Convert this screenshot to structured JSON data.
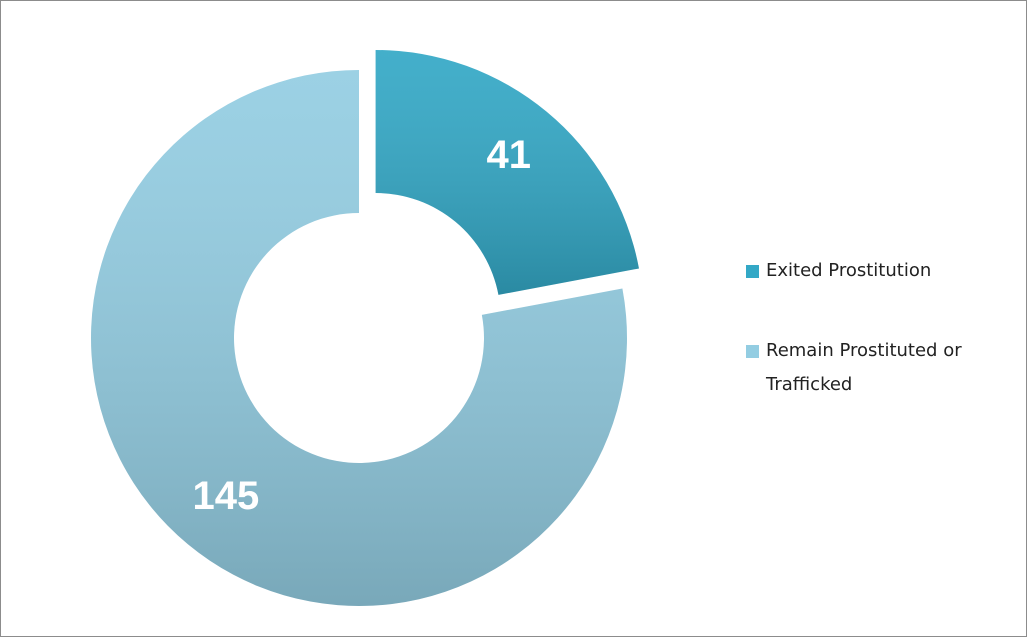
{
  "chart_data": {
    "type": "donut",
    "categories": [
      "Exited Prostitution",
      "Remain Prostituted or Trafficked"
    ],
    "values": [
      41,
      145
    ],
    "colors": [
      "#33a8c6",
      "#93cde2"
    ],
    "explode": [
      true,
      false
    ],
    "legend": "right"
  }
}
